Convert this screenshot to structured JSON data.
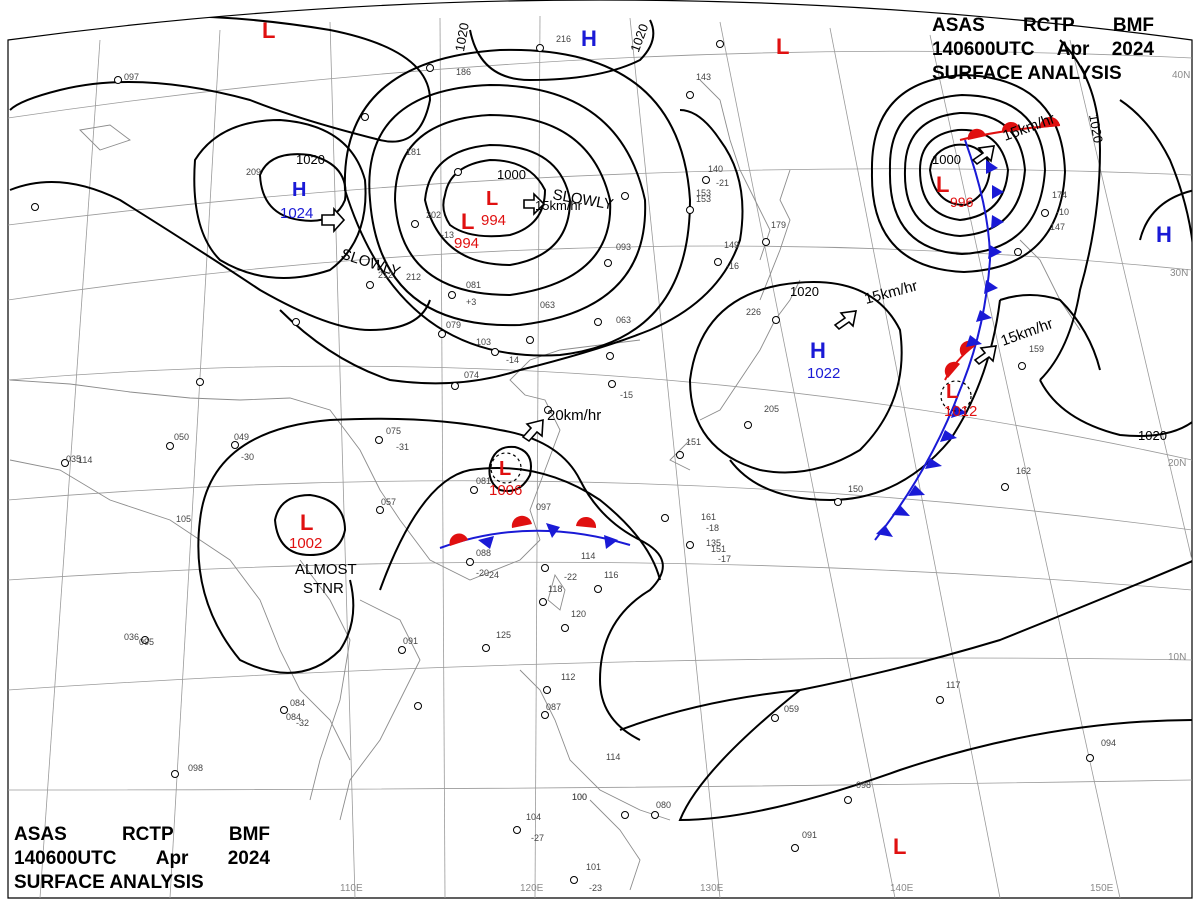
{
  "header": {
    "line1": [
      "ASAS",
      "RCTP",
      "BMF"
    ],
    "line2": [
      "140600UTC",
      "Apr",
      "2024"
    ],
    "line3": "SURFACE ANALYSIS"
  },
  "colors": {
    "high": "#1a1ad6",
    "low": "#e01010",
    "isobar": "#000000",
    "grid": "#9a9a9a",
    "coast": "#8c8c8c",
    "warm_front": "#e01010",
    "cold_front": "#1a1ad6"
  },
  "pressure_centers": [
    {
      "type": "H",
      "label": "H",
      "value": ""
    },
    {
      "type": "H",
      "label": "H",
      "value": "1024"
    },
    {
      "type": "H",
      "label": "H",
      "value": "1022"
    },
    {
      "type": "H",
      "label": "H",
      "value": ""
    },
    {
      "type": "L",
      "label": "L",
      "value": ""
    },
    {
      "type": "L",
      "label": "L",
      "value": ""
    },
    {
      "type": "L",
      "label": "L",
      "value": "994"
    },
    {
      "type": "L",
      "label": "L",
      "value": "994"
    },
    {
      "type": "L",
      "label": "L",
      "value": "996"
    },
    {
      "type": "L",
      "label": "L",
      "value": "1012"
    },
    {
      "type": "L",
      "label": "L",
      "value": "1006"
    },
    {
      "type": "L",
      "label": "L",
      "value": "1002"
    },
    {
      "type": "L",
      "label": "L",
      "value": ""
    }
  ],
  "isobar_labels": [
    "1020",
    "1020",
    "1020",
    "1020",
    "1000",
    "1000",
    "1020",
    "1020"
  ],
  "motion_labels": [
    "SLOWLY",
    "SLOWLY",
    "15km/hr",
    "15km/hr",
    "15km/hr",
    "20km/hr",
    "15km/hr",
    "ALMOST",
    "STNR"
  ],
  "longitude_labels": [
    "110E",
    "120E",
    "130E",
    "140E",
    "150E"
  ],
  "latitude_labels": [
    "40N",
    "30N",
    "20N",
    "10N"
  ],
  "station_reports": [
    "097",
    "212",
    "209",
    "186",
    "216",
    "143",
    "181",
    "202",
    "212",
    "081",
    "079",
    "103",
    "074",
    "075",
    "049",
    "050",
    "114",
    "105",
    "057",
    "081",
    "097",
    "088",
    "114",
    "116",
    "118",
    "120",
    "091",
    "125",
    "112",
    "087",
    "114",
    "084",
    "098",
    "100",
    "104",
    "101",
    "080",
    "091",
    "098",
    "059",
    "117",
    "094",
    "162",
    "150",
    "205",
    "151",
    "161",
    "135",
    "151",
    "153",
    "149",
    "179",
    "226",
    "140",
    "063",
    "093",
    "153",
    "147",
    "174",
    "159",
    "036",
    "095",
    "035",
    "063",
    "084",
    "100",
    "-20",
    "-24",
    "-22",
    "-15",
    "-32",
    "-27",
    "-23",
    "-18",
    "-17",
    "-21",
    "-16",
    "-10",
    "-13",
    "-14",
    "-31",
    "-30",
    "+3"
  ]
}
